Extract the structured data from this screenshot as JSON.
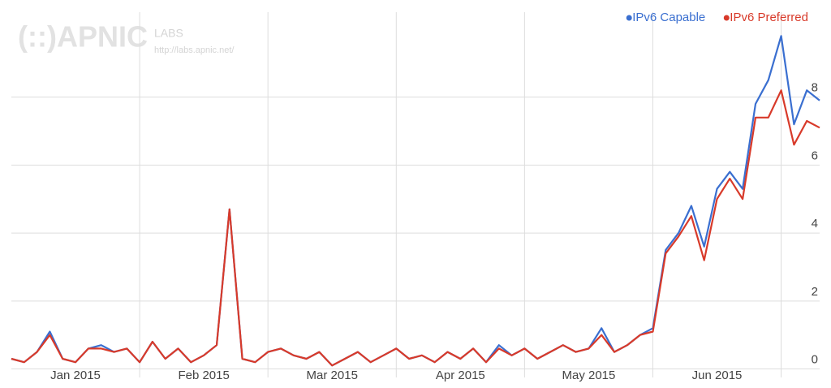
{
  "chart_data": {
    "type": "line",
    "watermark": {
      "logo": "(::)APNIC",
      "labs": "LABS",
      "url": "http://labs.apnic.net/"
    },
    "categories": [
      null,
      null,
      null,
      null,
      null,
      "Jan 2015",
      null,
      null,
      null,
      null,
      null,
      null,
      null,
      null,
      null,
      "Feb 2015",
      null,
      null,
      null,
      null,
      null,
      null,
      null,
      null,
      null,
      "Mar 2015",
      null,
      null,
      null,
      null,
      null,
      null,
      null,
      null,
      null,
      "Apr 2015",
      null,
      null,
      null,
      null,
      null,
      null,
      null,
      null,
      null,
      "May 2015",
      null,
      null,
      null,
      null,
      null,
      null,
      null,
      null,
      null,
      "Jun 2015",
      null,
      null,
      null,
      null,
      null,
      null,
      null,
      null
    ],
    "series": [
      {
        "name": "IPv6 Capable",
        "color": "#3a6fd0",
        "values": [
          0.3,
          0.2,
          0.5,
          1.1,
          0.3,
          0.2,
          0.6,
          0.7,
          0.5,
          0.6,
          0.2,
          0.8,
          0.3,
          0.6,
          0.2,
          0.4,
          0.7,
          4.7,
          0.3,
          0.2,
          0.5,
          0.6,
          0.4,
          0.3,
          0.5,
          0.1,
          0.3,
          0.5,
          0.2,
          0.4,
          0.6,
          0.3,
          0.4,
          0.2,
          0.5,
          0.3,
          0.6,
          0.2,
          0.7,
          0.4,
          0.6,
          0.3,
          0.5,
          0.7,
          0.5,
          0.6,
          1.2,
          0.5,
          0.7,
          1.0,
          1.2,
          3.5,
          4.0,
          4.8,
          3.6,
          5.3,
          5.8,
          5.3,
          7.8,
          8.5,
          9.8,
          7.2,
          8.2,
          7.9
        ]
      },
      {
        "name": "IPv6 Preferred",
        "color": "#d83a2a",
        "values": [
          0.3,
          0.2,
          0.5,
          1.0,
          0.3,
          0.2,
          0.6,
          0.6,
          0.5,
          0.6,
          0.2,
          0.8,
          0.3,
          0.6,
          0.2,
          0.4,
          0.7,
          4.7,
          0.3,
          0.2,
          0.5,
          0.6,
          0.4,
          0.3,
          0.5,
          0.1,
          0.3,
          0.5,
          0.2,
          0.4,
          0.6,
          0.3,
          0.4,
          0.2,
          0.5,
          0.3,
          0.6,
          0.2,
          0.6,
          0.4,
          0.6,
          0.3,
          0.5,
          0.7,
          0.5,
          0.6,
          1.0,
          0.5,
          0.7,
          1.0,
          1.1,
          3.4,
          3.9,
          4.5,
          3.2,
          5.0,
          5.6,
          5.0,
          7.4,
          7.4,
          8.2,
          6.6,
          7.3,
          7.1
        ]
      }
    ],
    "ylim": [
      -0.25,
      10.5
    ],
    "yticks": [
      0,
      2,
      4,
      6,
      8
    ],
    "grid": true,
    "legend": "top-right"
  }
}
